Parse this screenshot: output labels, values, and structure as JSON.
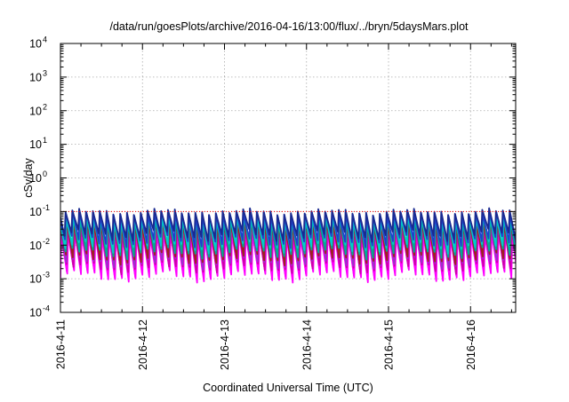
{
  "chart_data": {
    "type": "line",
    "title": "/data/run/goesPlots/archive/2016-04-16/13:00/flux/../bryn/5daysMars.plot",
    "xlabel": "Coordinated Universal Time (UTC)",
    "ylabel": "cSv/day",
    "yscale": "log",
    "ylim_exp": [
      -4,
      4
    ],
    "ytick_exponents": [
      "-4",
      "-3",
      "-2",
      "-1",
      "0",
      "1",
      "2",
      "3",
      "4"
    ],
    "ytick_base": "10",
    "xlim_days": [
      0,
      5.55
    ],
    "xticks": [
      {
        "label": "2016-4-11",
        "day": 0
      },
      {
        "label": "2016-4-12",
        "day": 1
      },
      {
        "label": "2016-4-13",
        "day": 2
      },
      {
        "label": "2016-4-14",
        "day": 3
      },
      {
        "label": "2016-4-15",
        "day": 4
      },
      {
        "label": "2016-4-16",
        "day": 5
      }
    ],
    "grid": true,
    "reference_line": {
      "value": 0.1,
      "color": "#ff0000",
      "style": "dotted"
    },
    "oscillation_period_days": 0.0833,
    "series": [
      {
        "color": "#ff00ff",
        "peak": 0.02,
        "trough": 0.0012
      },
      {
        "color": "#ff00ff",
        "peak": 0.025,
        "trough": 0.0016
      },
      {
        "color": "#cc00aa",
        "peak": 0.03,
        "trough": 0.0022
      },
      {
        "color": "#9933cc",
        "peak": 0.038,
        "trough": 0.003
      },
      {
        "color": "#a02020",
        "peak": 0.045,
        "trough": 0.004
      },
      {
        "color": "#00aa99",
        "peak": 0.06,
        "trough": 0.006
      },
      {
        "color": "#00cccc",
        "peak": 0.07,
        "trough": 0.009
      },
      {
        "color": "#2040cc",
        "peak": 0.085,
        "trough": 0.013
      },
      {
        "color": "#1a2a90",
        "peak": 0.1,
        "trough": 0.02
      }
    ]
  }
}
